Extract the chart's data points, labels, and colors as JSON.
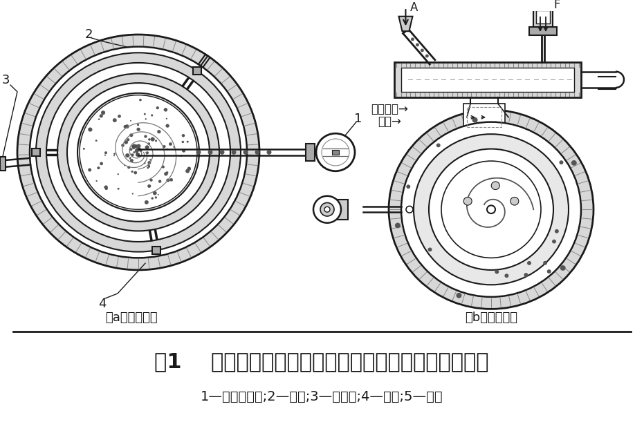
{
  "title": "图1    水平圆盘式（扁平式）气流磨工作原理与结构示意",
  "subtitle": "1—文丘里噴嘴;2—噴嘴;3—粉碎室;4—外壳;5—内衬",
  "label_a": "（a）工作原理",
  "label_b": "（b）结构示意",
  "label_compressed": "压缩空气→",
  "label_material": "物料→",
  "bg_color": "#ffffff",
  "line_color": "#1a1a1a",
  "title_fontsize": 22,
  "subtitle_fontsize": 14,
  "caption_fontsize": 13
}
